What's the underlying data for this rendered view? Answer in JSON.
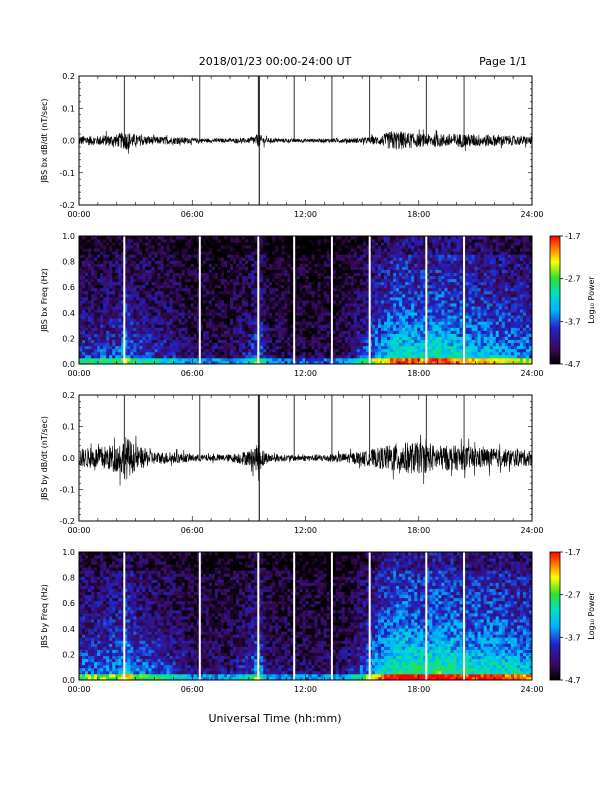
{
  "header": {
    "title": "2018/01/23  00:00-24:00 UT",
    "page": "Page 1/1"
  },
  "xlabel": "Universal Time (hh:mm)",
  "x_ticks": [
    "00:00",
    "06:00",
    "12:00",
    "18:00",
    "24:00"
  ],
  "colors": {
    "trace": "#000000",
    "colormap": [
      "#000000",
      "#3a0a5a",
      "#2222c8",
      "#00b4ff",
      "#00e0c0",
      "#30e030",
      "#ffff00",
      "#ff8000",
      "#ff0000"
    ]
  },
  "chart_data": [
    {
      "type": "line",
      "ylabel": "JBS bx dB/dt (nT/sec)",
      "xlim": [
        0,
        24
      ],
      "ylim": [
        -0.2,
        0.2
      ],
      "y_ticks": [
        "0.2",
        "0.1",
        "0.0",
        "-0.1",
        "-0.2"
      ],
      "y_tick_values": [
        0.2,
        0.1,
        0.0,
        -0.1,
        -0.2
      ],
      "vertical_lines_hours": [
        2.4,
        6.4,
        9.5,
        11.4,
        13.4,
        15.4,
        18.4,
        20.4
      ],
      "spike_hour": 9.55,
      "spike_range": [
        -0.2,
        0.2
      ],
      "noise_envelope": {
        "hours": [
          0,
          1,
          2,
          2.5,
          3,
          4,
          5,
          6,
          7,
          8,
          9,
          9.5,
          10,
          11,
          12,
          13,
          14,
          15,
          16,
          16.5,
          17,
          18,
          19,
          20,
          21,
          22,
          23,
          24
        ],
        "amplitude": [
          0.015,
          0.015,
          0.02,
          0.03,
          0.018,
          0.012,
          0.012,
          0.008,
          0.006,
          0.006,
          0.008,
          0.02,
          0.007,
          0.006,
          0.006,
          0.006,
          0.007,
          0.008,
          0.015,
          0.03,
          0.03,
          0.02,
          0.02,
          0.022,
          0.02,
          0.018,
          0.015,
          0.013
        ]
      }
    },
    {
      "type": "heatmap",
      "ylabel": "JBS bx Freq (Hz)",
      "xlim": [
        0,
        24
      ],
      "ylim": [
        0.0,
        1.0
      ],
      "y_ticks": [
        "1.0",
        "0.8",
        "0.6",
        "0.4",
        "0.2",
        "0.0"
      ],
      "y_tick_values": [
        1.0,
        0.8,
        0.6,
        0.4,
        0.2,
        0.0
      ],
      "colorbar_label": "Log₁₀ Power",
      "colorbar_ticks": [
        "-1.7",
        "-2.7",
        "-3.7",
        "-4.7"
      ],
      "colorbar_values": [
        -1.7,
        -2.7,
        -3.7,
        -4.7
      ],
      "gap_hours": [
        2.4,
        6.4,
        9.5,
        11.4,
        13.4,
        15.4,
        18.4,
        20.4
      ],
      "activity_hours": [
        0,
        2,
        2.5,
        3,
        5,
        6,
        8,
        9,
        9.5,
        10,
        12,
        14,
        15,
        16,
        17,
        18,
        19,
        20,
        21,
        22,
        23,
        24
      ],
      "activity_level": [
        0.35,
        0.4,
        0.55,
        0.4,
        0.3,
        0.2,
        0.18,
        0.3,
        0.5,
        0.2,
        0.15,
        0.18,
        0.35,
        0.6,
        0.75,
        0.7,
        0.75,
        0.7,
        0.65,
        0.6,
        0.55,
        0.5
      ]
    },
    {
      "type": "line",
      "ylabel": "JBS by dB/dt (nT/sec)",
      "xlim": [
        0,
        24
      ],
      "ylim": [
        -0.2,
        0.2
      ],
      "y_ticks": [
        "0.2",
        "0.1",
        "0.0",
        "-0.1",
        "-0.2"
      ],
      "y_tick_values": [
        0.2,
        0.1,
        0.0,
        -0.1,
        -0.2
      ],
      "vertical_lines_hours": [
        2.4,
        6.4,
        9.5,
        11.4,
        13.4,
        15.4,
        18.4,
        20.4
      ],
      "spike_hour": 9.55,
      "spike_range": [
        -0.2,
        0.2
      ],
      "noise_envelope": {
        "hours": [
          0,
          1,
          2,
          2.5,
          3,
          4,
          5,
          6,
          7,
          8,
          9,
          9.5,
          10,
          11,
          12,
          13,
          14,
          15,
          16,
          17,
          18,
          19,
          20,
          21,
          22,
          23,
          24
        ],
        "amplitude": [
          0.03,
          0.035,
          0.045,
          0.07,
          0.04,
          0.02,
          0.018,
          0.012,
          0.01,
          0.012,
          0.025,
          0.045,
          0.015,
          0.01,
          0.01,
          0.012,
          0.015,
          0.02,
          0.035,
          0.05,
          0.05,
          0.04,
          0.04,
          0.035,
          0.03,
          0.028,
          0.025
        ]
      }
    },
    {
      "type": "heatmap",
      "ylabel": "JBS by Freq (Hz)",
      "xlim": [
        0,
        24
      ],
      "ylim": [
        0.0,
        1.0
      ],
      "y_ticks": [
        "1.0",
        "0.8",
        "0.6",
        "0.4",
        "0.2",
        "0.0"
      ],
      "y_tick_values": [
        1.0,
        0.8,
        0.6,
        0.4,
        0.2,
        0.0
      ],
      "colorbar_label": "Log₁₀ Power",
      "colorbar_ticks": [
        "-1.7",
        "-2.7",
        "-3.7",
        "-4.7"
      ],
      "colorbar_values": [
        -1.7,
        -2.7,
        -3.7,
        -4.7
      ],
      "gap_hours": [
        2.4,
        6.4,
        9.5,
        11.4,
        13.4,
        15.4,
        18.4,
        20.4
      ],
      "activity_hours": [
        0,
        2,
        2.5,
        3,
        5,
        6,
        8,
        9,
        9.5,
        10,
        12,
        14,
        15,
        16,
        17,
        18,
        19,
        20,
        21,
        22,
        23,
        24
      ],
      "activity_level": [
        0.45,
        0.5,
        0.65,
        0.5,
        0.35,
        0.25,
        0.22,
        0.35,
        0.55,
        0.25,
        0.2,
        0.22,
        0.4,
        0.7,
        0.85,
        0.8,
        0.85,
        0.8,
        0.75,
        0.75,
        0.7,
        0.65
      ]
    }
  ]
}
